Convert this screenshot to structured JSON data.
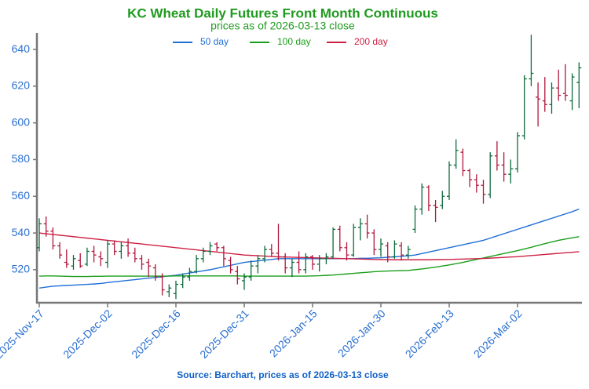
{
  "chart_data": {
    "type": "ohlc",
    "title": "KC Wheat Daily Futures Front Month Continuous",
    "subtitle": "prices as of 2026-03-13 close",
    "source": "Source: Barchart, prices as of 2026-03-13 close",
    "ylim": [
      502,
      649
    ],
    "yticks": [
      520,
      540,
      560,
      580,
      600,
      620,
      640
    ],
    "up_color": "#0b6b3a",
    "down_color": "#b0173a",
    "categories": [
      "2025-Nov-17",
      null,
      null,
      null,
      null,
      null,
      null,
      null,
      null,
      null,
      "2025-Dec-02",
      null,
      null,
      null,
      null,
      null,
      null,
      null,
      null,
      null,
      "2025-Dec-16",
      null,
      null,
      null,
      null,
      null,
      null,
      null,
      null,
      null,
      "2025-Dec-31",
      null,
      null,
      null,
      null,
      null,
      null,
      null,
      null,
      null,
      "2026-Jan-15",
      null,
      null,
      null,
      null,
      null,
      null,
      null,
      null,
      null,
      "2026-Jan-30",
      null,
      null,
      null,
      null,
      null,
      null,
      null,
      null,
      null,
      "2026-Feb-13",
      null,
      null,
      null,
      null,
      null,
      null,
      null,
      null,
      null,
      "2026-Mar-02",
      null,
      null,
      null,
      null,
      null,
      null,
      null,
      null,
      null
    ],
    "open": [
      532,
      545,
      541,
      533,
      524,
      522,
      525,
      523,
      530,
      527,
      524,
      534,
      530,
      533,
      529,
      526,
      524,
      521,
      516,
      508,
      507,
      512,
      516,
      519,
      526,
      530,
      534,
      532,
      525,
      519,
      514,
      516,
      522,
      526,
      531,
      529,
      527,
      521,
      524,
      520,
      527,
      523,
      526,
      527,
      542,
      532,
      528,
      543,
      545,
      540,
      531,
      533,
      527,
      533,
      528,
      542,
      553,
      565,
      555,
      555,
      560,
      577,
      584,
      574,
      569,
      566,
      561,
      582,
      577,
      572,
      575,
      593,
      624,
      614,
      612,
      610,
      619,
      616,
      612,
      622
    ],
    "high": [
      548,
      549,
      543,
      535,
      531,
      528,
      529,
      532,
      533,
      530,
      536,
      536,
      535,
      537,
      532,
      528,
      526,
      523,
      518,
      512,
      514,
      518,
      521,
      528,
      532,
      535,
      535,
      533,
      527,
      522,
      518,
      525,
      528,
      533,
      534,
      545,
      529,
      526,
      530,
      529,
      528,
      528,
      529,
      543,
      544,
      535,
      545,
      548,
      550,
      542,
      537,
      535,
      536,
      535,
      533,
      555,
      567,
      566,
      558,
      563,
      579,
      591,
      586,
      575,
      572,
      569,
      584,
      590,
      584,
      580,
      595,
      626,
      648,
      622,
      625,
      622,
      629,
      632,
      627,
      633
    ],
    "low": [
      530,
      538,
      531,
      526,
      521,
      520,
      521,
      522,
      524,
      522,
      521,
      528,
      526,
      527,
      524,
      520,
      516,
      514,
      506,
      505,
      504,
      510,
      514,
      518,
      524,
      528,
      530,
      522,
      518,
      512,
      509,
      514,
      518,
      524,
      527,
      525,
      518,
      516,
      518,
      518,
      520,
      519,
      523,
      526,
      530,
      525,
      527,
      536,
      537,
      528,
      527,
      524,
      526,
      525,
      526,
      540,
      550,
      552,
      546,
      553,
      558,
      575,
      571,
      565,
      562,
      556,
      559,
      574,
      568,
      567,
      573,
      591,
      620,
      598,
      606,
      605,
      612,
      612,
      607,
      608
    ],
    "close": [
      545,
      541,
      533,
      528,
      523,
      526,
      522,
      530,
      528,
      526,
      534,
      530,
      533,
      529,
      526,
      523,
      522,
      516,
      509,
      510,
      512,
      516,
      519,
      526,
      530,
      533,
      532,
      526,
      520,
      515,
      516,
      522,
      526,
      531,
      529,
      527,
      521,
      524,
      520,
      527,
      523,
      526,
      527,
      542,
      532,
      528,
      543,
      545,
      540,
      531,
      534,
      527,
      534,
      528,
      531,
      553,
      565,
      555,
      554,
      560,
      577,
      585,
      574,
      569,
      566,
      561,
      582,
      577,
      572,
      575,
      593,
      624,
      627,
      613,
      610,
      619,
      615,
      615,
      625,
      630
    ],
    "series": [
      {
        "name": "50 day",
        "color": "#1f6fd6",
        "values": [
          510,
          510.5,
          511,
          511.2,
          511.4,
          511.6,
          511.8,
          512,
          512.2,
          512.5,
          513,
          513.4,
          513.8,
          514.2,
          514.6,
          515,
          515.4,
          515.8,
          516.2,
          516.6,
          517,
          517.6,
          518.2,
          518.8,
          519.4,
          520,
          520.8,
          521.6,
          522.4,
          523.2,
          524,
          524.4,
          524.8,
          525.2,
          525.6,
          526,
          526,
          526,
          526,
          526,
          526,
          526,
          526,
          526,
          526,
          526,
          526,
          526.2,
          526.2,
          526.4,
          526.5,
          526.8,
          527,
          527.3,
          527.6,
          528,
          528.8,
          529.6,
          530.4,
          531.2,
          532,
          532.8,
          533.6,
          534.4,
          535.2,
          536,
          537.2,
          538.4,
          539.6,
          540.8,
          542,
          543.2,
          544.4,
          545.6,
          546.8,
          548,
          549.2,
          550.4,
          551.6,
          553
        ]
      },
      {
        "name": "100 day",
        "color": "#1a9e1a",
        "values": [
          516.5,
          516.6,
          516.6,
          516.5,
          516.4,
          516.3,
          516.3,
          516.3,
          516.4,
          516.4,
          516.5,
          516.5,
          516.5,
          516.5,
          516.5,
          516.5,
          516.5,
          516.5,
          516.5,
          516.5,
          516.6,
          516.6,
          516.6,
          516.6,
          516.6,
          516.6,
          516.6,
          516.6,
          516.6,
          516.6,
          516.5,
          516.5,
          516.5,
          516.5,
          516.5,
          516.5,
          516.5,
          516.5,
          516.5,
          516.5,
          516.6,
          516.7,
          516.9,
          517.1,
          517.4,
          517.7,
          518,
          518.3,
          518.6,
          518.9,
          519.1,
          519.3,
          519.4,
          519.5,
          519.6,
          520,
          520.4,
          520.9,
          521.4,
          522,
          522.6,
          523.3,
          524,
          524.8,
          525.6,
          526.4,
          527.2,
          528,
          528.8,
          529.6,
          530.4,
          531.3,
          532.2,
          533.2,
          534.2,
          535.1,
          536,
          536.7,
          537.4,
          538
        ]
      },
      {
        "name": "200 day",
        "color": "#cc2244",
        "values": [
          540,
          539.6,
          539.2,
          538.8,
          538.4,
          538,
          537.6,
          537.2,
          536.8,
          536.4,
          536,
          535.6,
          535.2,
          534.8,
          534.4,
          534,
          533.6,
          533.2,
          532.8,
          532.4,
          532,
          531.6,
          531.2,
          530.8,
          530.4,
          530,
          529.6,
          529.2,
          528.8,
          528.4,
          528,
          527.8,
          527.6,
          527.4,
          527.2,
          527,
          526.9,
          526.8,
          526.7,
          526.6,
          526.5,
          526.4,
          526.3,
          526.2,
          526.1,
          526,
          525.9,
          525.8,
          525.7,
          525.6,
          525.5,
          525.5,
          525.4,
          525.4,
          525.4,
          525.4,
          525.4,
          525.4,
          525.5,
          525.5,
          525.6,
          525.7,
          525.8,
          525.9,
          526,
          526.1,
          526.3,
          526.5,
          526.7,
          526.9,
          527.1,
          527.4,
          527.7,
          528,
          528.3,
          528.6,
          528.9,
          529.2,
          529.5,
          529.8
        ]
      }
    ]
  }
}
